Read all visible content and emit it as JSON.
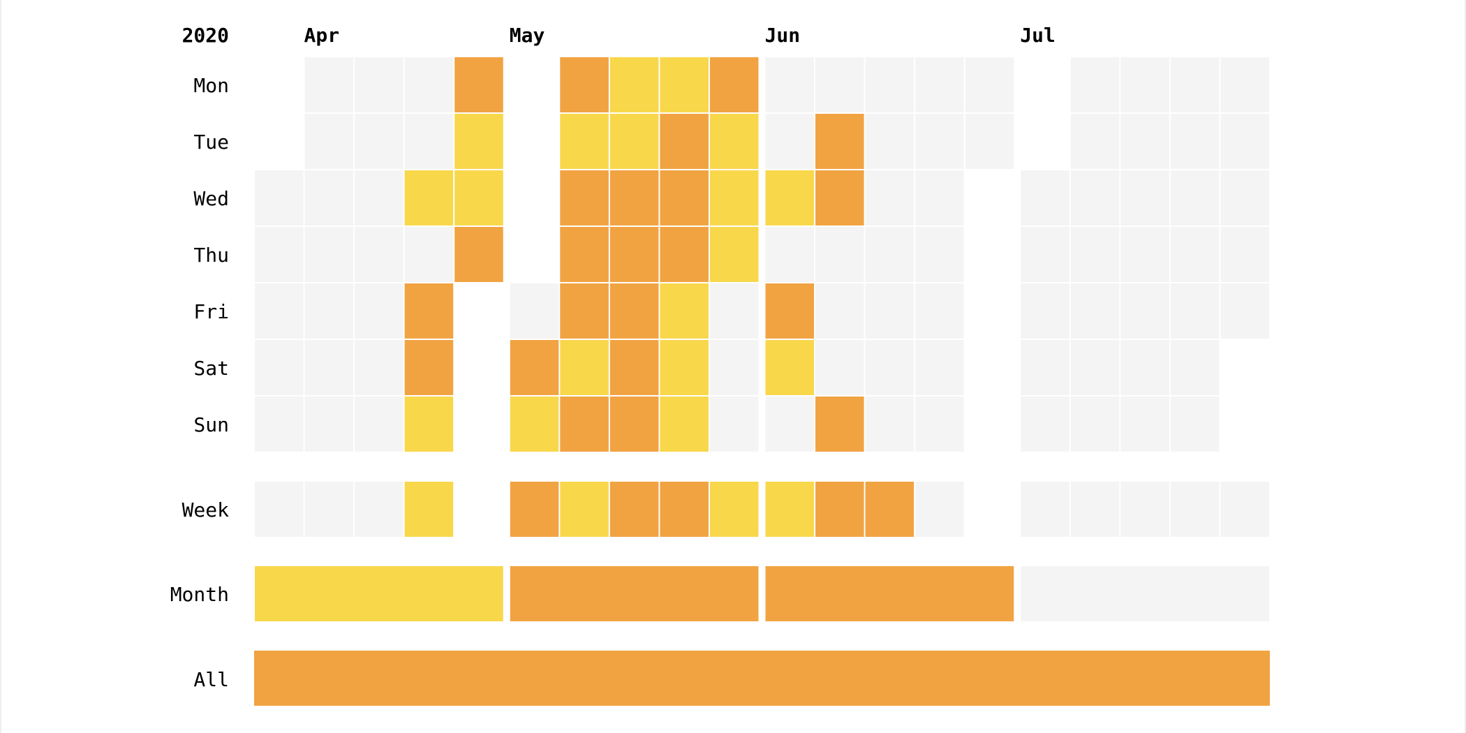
{
  "chart_data": {
    "type": "heatmap",
    "year": "2020",
    "months": [
      "Apr",
      "May",
      "Jun",
      "Jul"
    ],
    "day_labels": [
      "Mon",
      "Tue",
      "Wed",
      "Thu",
      "Fri",
      "Sat",
      "Sun"
    ],
    "row_labels": {
      "week": "Week",
      "month": "Month",
      "all": "All"
    },
    "colors": {
      "none": "#f4f4f4",
      "yellow": "#f8d74b",
      "orange": "#f1a342"
    },
    "legend_keys": {
      "0": "none",
      "1": "yellow",
      "2": "orange"
    },
    "days": [
      {
        "month": "Apr",
        "values": [
          [
            null,
            null,
            0,
            0,
            0,
            0,
            0
          ],
          [
            0,
            0,
            0,
            0,
            0,
            0,
            0
          ],
          [
            0,
            0,
            0,
            0,
            0,
            0,
            0
          ],
          [
            0,
            0,
            1,
            0,
            2,
            2,
            1
          ],
          [
            2,
            1,
            1,
            2
          ]
        ]
      },
      {
        "month": "May",
        "values": [
          [
            null,
            null,
            null,
            null,
            0,
            2,
            1
          ],
          [
            2,
            1,
            2,
            2,
            2,
            1,
            2
          ],
          [
            1,
            1,
            2,
            2,
            2,
            2,
            2
          ],
          [
            1,
            2,
            2,
            2,
            1,
            1,
            1
          ],
          [
            2,
            1,
            1,
            1,
            0,
            0,
            0
          ]
        ]
      },
      {
        "month": "Jun",
        "values": [
          [
            0,
            0,
            1,
            0,
            2,
            1,
            0
          ],
          [
            0,
            2,
            2,
            0,
            0,
            0,
            2
          ],
          [
            0,
            0,
            0,
            0,
            0,
            0,
            0
          ],
          [
            0,
            0,
            0,
            0,
            0,
            0,
            0
          ],
          [
            0,
            0
          ]
        ]
      },
      {
        "month": "Jul",
        "values": [
          [
            null,
            null,
            0,
            0,
            0,
            0,
            0
          ],
          [
            0,
            0,
            0,
            0,
            0,
            0,
            0
          ],
          [
            0,
            0,
            0,
            0,
            0,
            0,
            0
          ],
          [
            0,
            0,
            0,
            0,
            0,
            0,
            0
          ],
          [
            0,
            0,
            0,
            0,
            0
          ]
        ]
      }
    ],
    "weeks": [
      {
        "month": "Apr",
        "values": [
          0,
          0,
          0,
          1
        ]
      },
      {
        "month": "May",
        "values": [
          2,
          1,
          2,
          2,
          1
        ]
      },
      {
        "month": "Jun",
        "values": [
          1,
          2,
          2,
          0
        ]
      },
      {
        "month": "Jul",
        "values": [
          0,
          0,
          0,
          0,
          0
        ]
      }
    ],
    "month_values": [
      1,
      2,
      2,
      0
    ],
    "all_value": 2
  }
}
